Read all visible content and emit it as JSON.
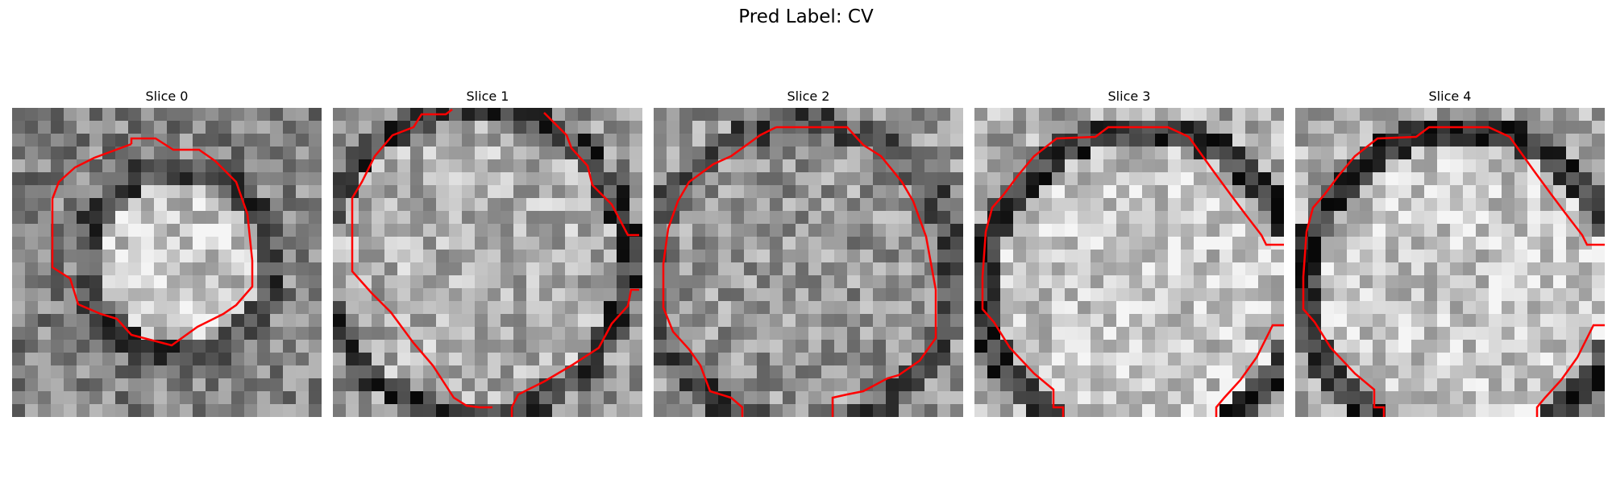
{
  "figure": {
    "title": "Pred Label: CV"
  },
  "panels": [
    {
      "title": "Slice 0",
      "seed": 11,
      "outline_color": "#ff0000"
    },
    {
      "title": "Slice 1",
      "seed": 23,
      "outline_color": "#ff0000"
    },
    {
      "title": "Slice 2",
      "seed": 37,
      "outline_color": "#ff0000"
    },
    {
      "title": "Slice 3",
      "seed": 41,
      "outline_color": "#ff0000"
    },
    {
      "title": "Slice 4",
      "seed": 53,
      "outline_color": "#ff0000"
    }
  ]
}
